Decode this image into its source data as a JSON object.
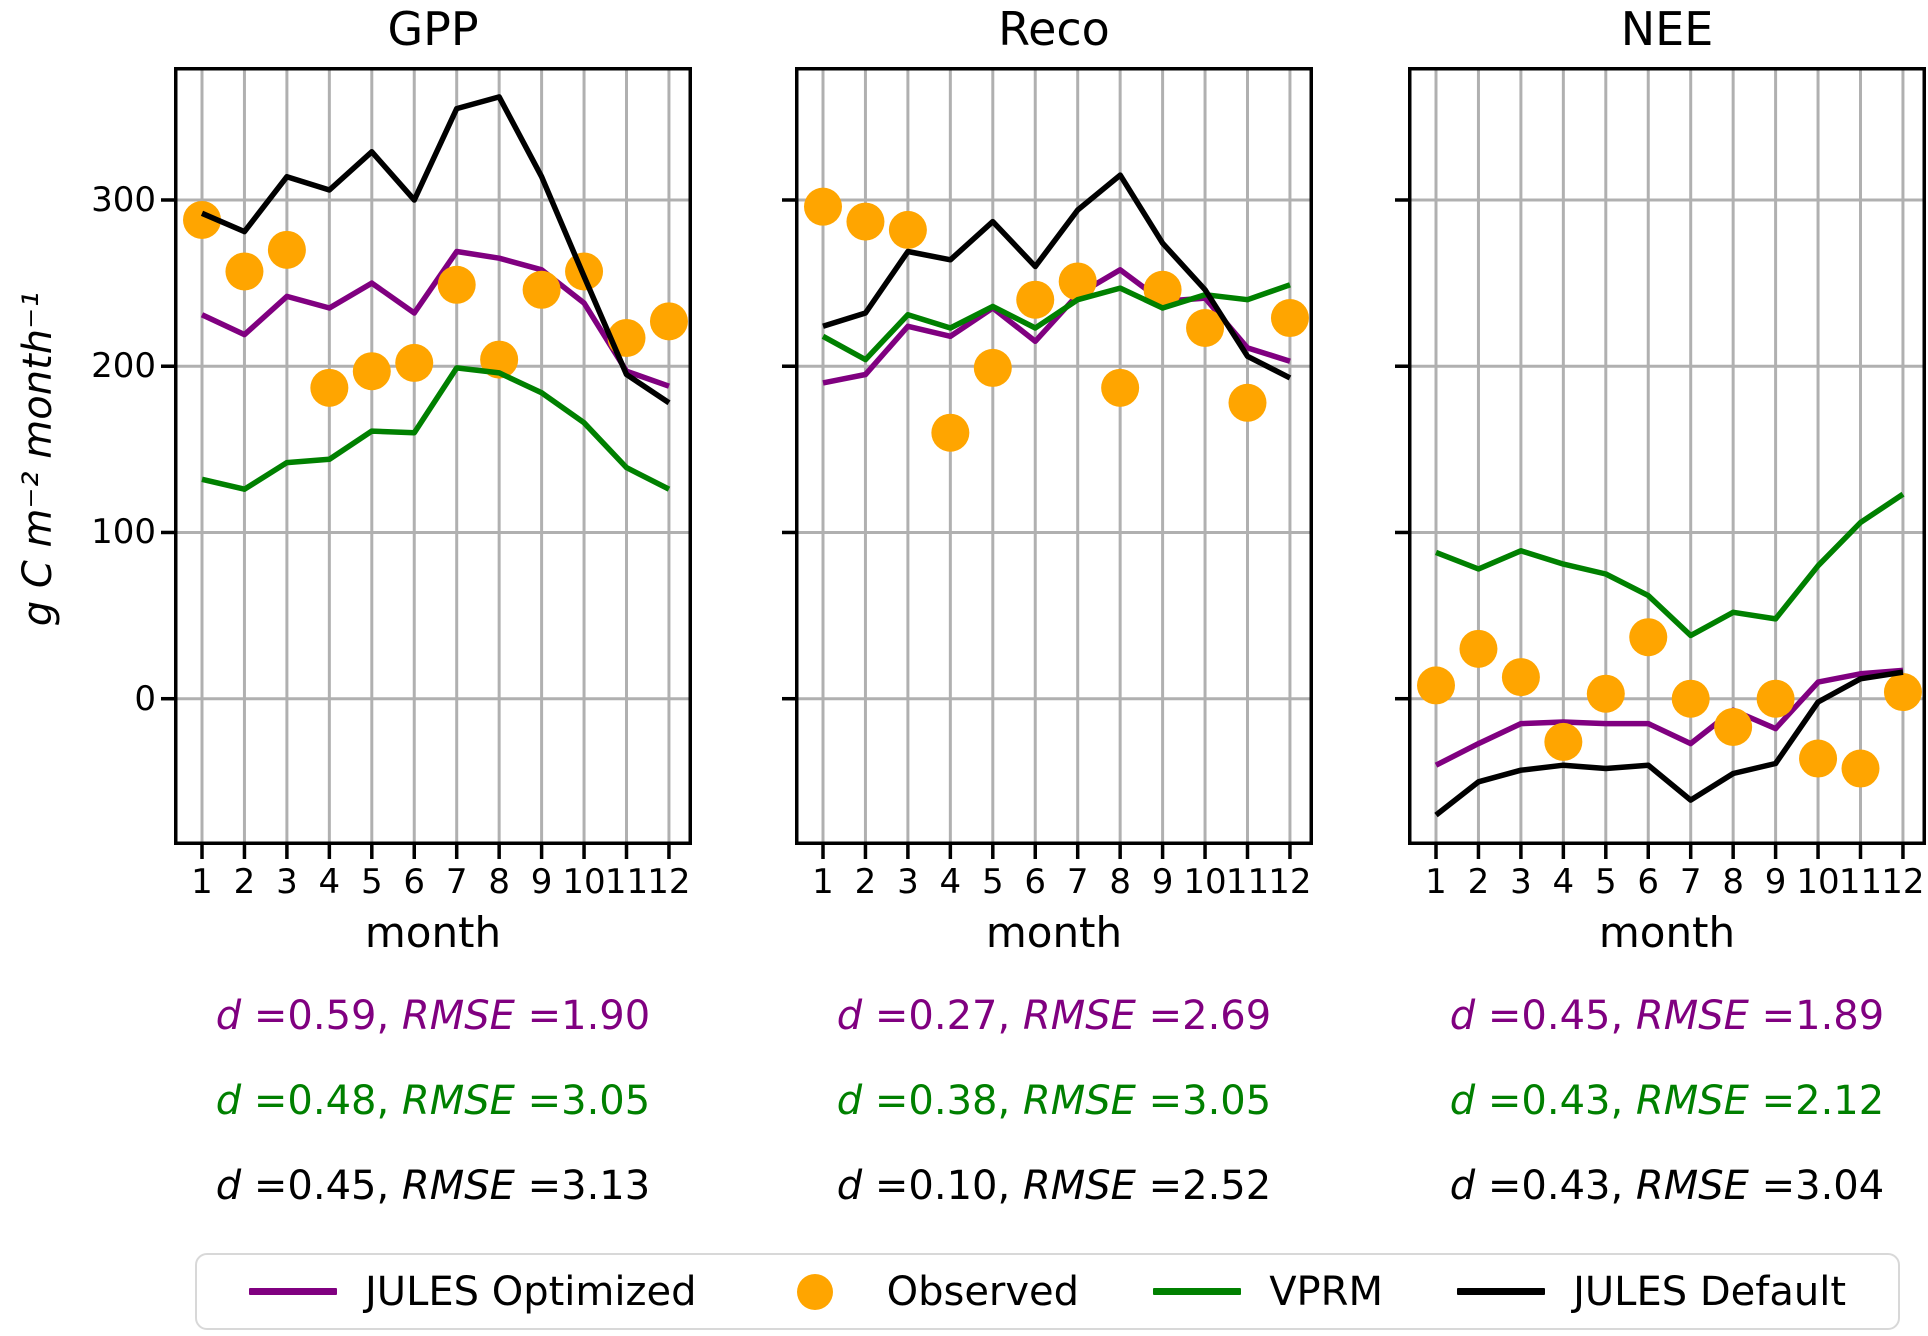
{
  "figure": {
    "background": "#ffffff",
    "grid_color": "#b0b0b0",
    "stats_labels": {
      "d": "d",
      "rmse": "RMSE"
    }
  },
  "axes": {
    "xlabel": "month",
    "ylabel": "g C m⁻² month⁻¹",
    "xticks": [
      1,
      2,
      3,
      4,
      5,
      6,
      7,
      8,
      9,
      10,
      11,
      12
    ],
    "xticklabels": [
      "1",
      "2",
      "3",
      "4",
      "5",
      "6",
      "7",
      "8",
      "9",
      "10",
      "11",
      "12"
    ],
    "yticks": [
      0,
      100,
      200,
      300
    ],
    "yticklabels": [
      "0",
      "100",
      "200",
      "300"
    ],
    "ylim": [
      -88,
      380
    ],
    "grid": true
  },
  "legend": {
    "items": [
      {
        "label": "JULES Optimized",
        "color": "#800080",
        "marker": "line"
      },
      {
        "label": "Observed",
        "color": "#FFA500",
        "marker": "dot"
      },
      {
        "label": "VPRM",
        "color": "#008000",
        "marker": "line"
      },
      {
        "label": "JULES Default",
        "color": "#000000",
        "marker": "line"
      }
    ]
  },
  "chart_data": [
    {
      "type": "line",
      "title": "GPP",
      "xlabel": "month",
      "ylabel": "g C m⁻² month⁻¹",
      "x": [
        1,
        2,
        3,
        4,
        5,
        6,
        7,
        8,
        9,
        10,
        11,
        12
      ],
      "ylim": [
        -88,
        380
      ],
      "series": [
        {
          "name": "JULES Optimized",
          "style": "line",
          "color": "#800080",
          "values": [
            231,
            219,
            242,
            235,
            250,
            232,
            269,
            265,
            258,
            238,
            197,
            188
          ]
        },
        {
          "name": "Observed",
          "style": "scatter",
          "color": "#FFA500",
          "values": [
            288,
            257,
            270,
            187,
            197,
            202,
            249,
            204,
            246,
            257,
            217,
            227
          ]
        },
        {
          "name": "VPRM",
          "style": "line",
          "color": "#008000",
          "values": [
            132,
            126,
            142,
            144,
            161,
            160,
            199,
            196,
            184,
            166,
            139,
            126
          ]
        },
        {
          "name": "JULES Default",
          "style": "line",
          "color": "#000000",
          "values": [
            292,
            281,
            314,
            306,
            329,
            300,
            355,
            362,
            314,
            254,
            195,
            178
          ]
        }
      ],
      "stats": [
        {
          "series": "JULES Optimized",
          "color": "#800080",
          "d": "0.59",
          "rmse": "1.90"
        },
        {
          "series": "VPRM",
          "color": "#008000",
          "d": "0.48",
          "rmse": "3.05"
        },
        {
          "series": "JULES Default",
          "color": "#000000",
          "d": "0.45",
          "rmse": "3.13"
        }
      ]
    },
    {
      "type": "line",
      "title": "Reco",
      "xlabel": "month",
      "ylabel": "g C m⁻² month⁻¹",
      "x": [
        1,
        2,
        3,
        4,
        5,
        6,
        7,
        8,
        9,
        10,
        11,
        12
      ],
      "ylim": [
        -88,
        380
      ],
      "series": [
        {
          "name": "JULES Optimized",
          "style": "line",
          "color": "#800080",
          "values": [
            190,
            195,
            224,
            218,
            235,
            215,
            243,
            258,
            239,
            241,
            211,
            203
          ]
        },
        {
          "name": "Observed",
          "style": "scatter",
          "color": "#FFA500",
          "values": [
            296,
            287,
            282,
            160,
            199,
            240,
            251,
            187,
            246,
            223,
            178,
            229
          ]
        },
        {
          "name": "VPRM",
          "style": "line",
          "color": "#008000",
          "values": [
            218,
            204,
            231,
            223,
            236,
            223,
            240,
            247,
            235,
            243,
            240,
            249
          ]
        },
        {
          "name": "JULES Default",
          "style": "line",
          "color": "#000000",
          "values": [
            224,
            232,
            269,
            264,
            287,
            260,
            294,
            315,
            274,
            246,
            206,
            193
          ]
        }
      ],
      "stats": [
        {
          "series": "JULES Optimized",
          "color": "#800080",
          "d": "0.27",
          "rmse": "2.69"
        },
        {
          "series": "VPRM",
          "color": "#008000",
          "d": "0.38",
          "rmse": "3.05"
        },
        {
          "series": "JULES Default",
          "color": "#000000",
          "d": "0.10",
          "rmse": "2.52"
        }
      ]
    },
    {
      "type": "line",
      "title": "NEE",
      "xlabel": "month",
      "ylabel": "g C m⁻² month⁻¹",
      "x": [
        1,
        2,
        3,
        4,
        5,
        6,
        7,
        8,
        9,
        10,
        11,
        12
      ],
      "ylim": [
        -88,
        380
      ],
      "series": [
        {
          "name": "JULES Optimized",
          "style": "line",
          "color": "#800080",
          "values": [
            -40,
            -27,
            -15,
            -14,
            -15,
            -15,
            -27,
            -7,
            -18,
            10,
            15,
            17
          ]
        },
        {
          "name": "Observed",
          "style": "scatter",
          "color": "#FFA500",
          "values": [
            8,
            30,
            13,
            -26,
            3,
            37,
            0,
            -17,
            0,
            -36,
            -42,
            4
          ]
        },
        {
          "name": "VPRM",
          "style": "line",
          "color": "#008000",
          "values": [
            88,
            78,
            89,
            81,
            75,
            62,
            38,
            52,
            48,
            80,
            106,
            123
          ]
        },
        {
          "name": "JULES Default",
          "style": "line",
          "color": "#000000",
          "values": [
            -70,
            -50,
            -43,
            -40,
            -42,
            -40,
            -61,
            -45,
            -39,
            -2,
            12,
            16
          ]
        }
      ],
      "stats": [
        {
          "series": "JULES Optimized",
          "color": "#800080",
          "d": "0.45",
          "rmse": "1.89"
        },
        {
          "series": "VPRM",
          "color": "#008000",
          "d": "0.43",
          "rmse": "2.12"
        },
        {
          "series": "JULES Default",
          "color": "#000000",
          "d": "0.43",
          "rmse": "3.04"
        }
      ]
    }
  ]
}
